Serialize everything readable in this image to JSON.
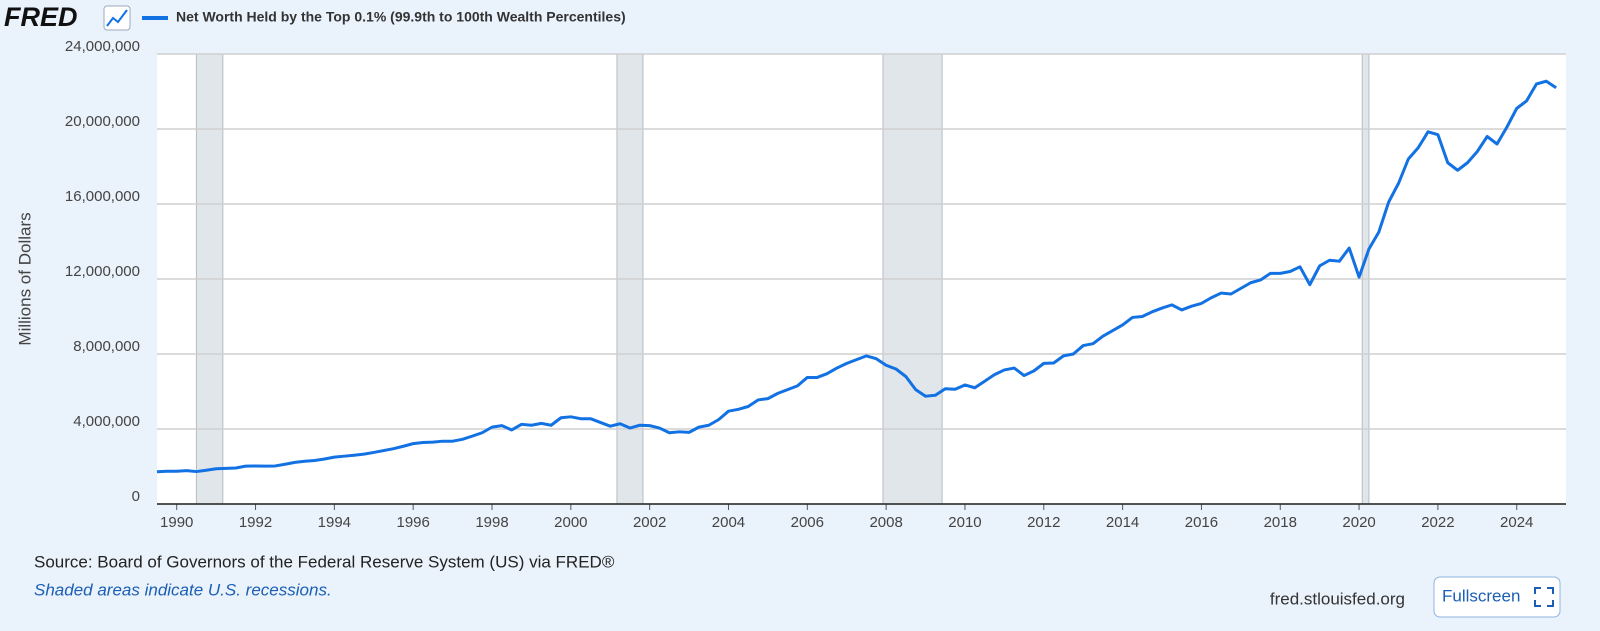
{
  "ui": {
    "logo": "FRED",
    "button": "Fullscreen"
  },
  "chart_data": {
    "type": "line",
    "ylabel": "Millions of Dollars",
    "source": "Source: Board of Governors of the Federal Reserve System (US) via FRED®",
    "note": "Shaded areas indicate U.S. recessions.",
    "site": "fred.stlouisfed.org",
    "xlim": [
      1989.5,
      2025.25
    ],
    "ylim": [
      0,
      24000000
    ],
    "xticks": [
      1990,
      1992,
      1994,
      1996,
      1998,
      2000,
      2002,
      2004,
      2006,
      2008,
      2010,
      2012,
      2014,
      2016,
      2018,
      2020,
      2022,
      2024
    ],
    "yticks": [
      0,
      {
        "value": 4000000,
        "label": "4,000,000"
      },
      {
        "value": 8000000,
        "label": "8,000,000"
      },
      {
        "value": 12000000,
        "label": "12,000,000"
      },
      {
        "value": 16000000,
        "label": "16,000,000"
      },
      {
        "value": 20000000,
        "label": "20,000,000"
      },
      {
        "value": 24000000,
        "label": "24,000,000"
      }
    ],
    "grid": true,
    "recessions": [
      [
        1990.5,
        1991.17
      ],
      [
        2001.17,
        2001.83
      ],
      [
        2007.92,
        2009.42
      ],
      [
        2020.08,
        2020.25
      ]
    ],
    "x": [
      1989.5,
      1989.75,
      1990,
      1990.25,
      1990.5,
      1990.75,
      1991,
      1991.25,
      1991.5,
      1991.75,
      1992,
      1992.25,
      1992.5,
      1992.75,
      1993,
      1993.25,
      1993.5,
      1993.75,
      1994,
      1994.25,
      1994.5,
      1994.75,
      1995,
      1995.25,
      1995.5,
      1995.75,
      1996,
      1996.25,
      1996.5,
      1996.75,
      1997,
      1997.25,
      1997.5,
      1997.75,
      1998,
      1998.25,
      1998.5,
      1998.75,
      1999,
      1999.25,
      1999.5,
      1999.75,
      2000,
      2000.25,
      2000.5,
      2000.75,
      2001,
      2001.25,
      2001.5,
      2001.75,
      2002,
      2002.25,
      2002.5,
      2002.75,
      2003,
      2003.25,
      2003.5,
      2003.75,
      2004,
      2004.25,
      2004.5,
      2004.75,
      2005,
      2005.25,
      2005.5,
      2005.75,
      2006,
      2006.25,
      2006.5,
      2006.75,
      2007,
      2007.25,
      2007.5,
      2007.75,
      2008,
      2008.25,
      2008.5,
      2008.75,
      2009,
      2009.25,
      2009.5,
      2009.75,
      2010,
      2010.25,
      2010.5,
      2010.75,
      2011,
      2011.25,
      2011.5,
      2011.75,
      2012,
      2012.25,
      2012.5,
      2012.75,
      2013,
      2013.25,
      2013.5,
      2013.75,
      2014,
      2014.25,
      2014.5,
      2014.75,
      2015,
      2015.25,
      2015.5,
      2015.75,
      2016,
      2016.25,
      2016.5,
      2016.75,
      2017,
      2017.25,
      2017.5,
      2017.75,
      2018,
      2018.25,
      2018.5,
      2018.75,
      2019,
      2019.25,
      2019.5,
      2019.75,
      2020,
      2020.25,
      2020.5,
      2020.75,
      2021,
      2021.25,
      2021.5,
      2021.75,
      2022,
      2022.25,
      2022.5,
      2022.75,
      2023,
      2023.25,
      2023.5,
      2023.75,
      2024,
      2024.25,
      2024.5,
      2024.75,
      2025
    ],
    "series": [
      {
        "name": "Net Worth Held by the Top 0.1% (99.9th to 100th Wealth Percentiles)",
        "color": "#1271e3",
        "values": [
          1720000,
          1750000,
          1750000,
          1780000,
          1730000,
          1800000,
          1880000,
          1900000,
          1920000,
          2020000,
          2030000,
          2020000,
          2030000,
          2120000,
          2220000,
          2280000,
          2320000,
          2400000,
          2500000,
          2550000,
          2600000,
          2660000,
          2750000,
          2850000,
          2950000,
          3080000,
          3220000,
          3280000,
          3300000,
          3350000,
          3350000,
          3450000,
          3620000,
          3800000,
          4100000,
          4180000,
          3950000,
          4250000,
          4200000,
          4300000,
          4200000,
          4600000,
          4650000,
          4550000,
          4550000,
          4350000,
          4150000,
          4280000,
          4050000,
          4200000,
          4180000,
          4050000,
          3800000,
          3850000,
          3820000,
          4100000,
          4200000,
          4500000,
          4950000,
          5050000,
          5200000,
          5550000,
          5620000,
          5900000,
          6100000,
          6300000,
          6750000,
          6750000,
          6950000,
          7250000,
          7500000,
          7700000,
          7900000,
          7750000,
          7400000,
          7200000,
          6800000,
          6100000,
          5750000,
          5800000,
          6150000,
          6120000,
          6350000,
          6200000,
          6550000,
          6900000,
          7150000,
          7250000,
          6850000,
          7100000,
          7500000,
          7520000,
          7900000,
          8000000,
          8450000,
          8550000,
          8950000,
          9250000,
          9550000,
          9950000,
          10000000,
          10250000,
          10450000,
          10620000,
          10350000,
          10550000,
          10700000,
          11000000,
          11250000,
          11200000,
          11500000,
          11800000,
          11950000,
          12300000,
          12300000,
          12400000,
          12650000,
          11700000,
          12700000,
          13000000,
          12950000,
          13650000,
          12100000,
          13600000,
          14500000,
          16100000,
          17100000,
          18400000,
          19000000,
          19850000,
          19700000,
          18200000,
          17800000,
          18200000,
          18800000,
          19600000,
          19200000,
          20100000,
          21100000,
          21500000,
          22400000,
          22550000,
          22200000
        ]
      }
    ]
  }
}
